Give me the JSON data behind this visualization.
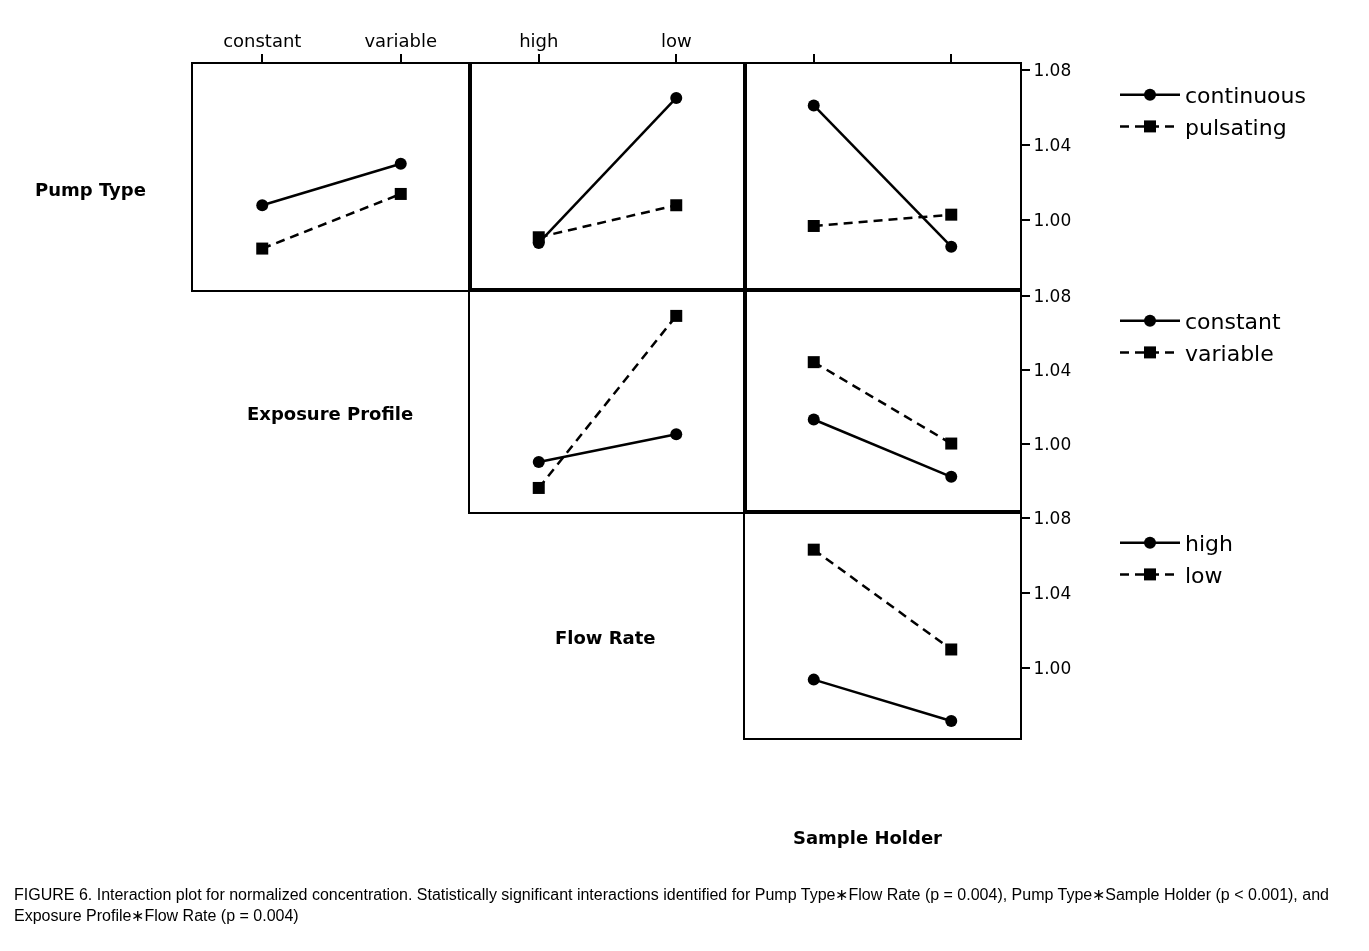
{
  "chart_data": [
    {
      "type": "line",
      "ylabel": "Pump Type",
      "categories": [
        "constant",
        "variable"
      ],
      "series": [
        {
          "color": "#000000",
          "marker": "circle",
          "line_style": "solid",
          "values": [
            1.008,
            1.03
          ]
        },
        {
          "color": "#000000",
          "marker": "square",
          "line_style": "dashed",
          "values": [
            0.985,
            1.014
          ]
        }
      ],
      "ylim": [
        0.963,
        1.083
      ],
      "tick_labels": "x",
      "annotations": [
        "FIGURE 6.   Interaction plot for normalized concentration. Statistically significant interactions identified for Pump Type∗Flow Rate (p = 0.004), Pump Type∗Sample Holder (p < 0.001), and Exposure Profile∗Flow Rate (p = 0.004)"
      ]
    },
    {
      "type": "line",
      "categories": [
        "high",
        "low"
      ],
      "series": [
        {
          "color": "#000000",
          "marker": "circle",
          "line_style": "solid",
          "values": [
            0.988,
            1.065
          ]
        },
        {
          "color": "#000000",
          "marker": "square",
          "line_style": "dashed",
          "values": [
            0.991,
            1.008
          ]
        }
      ],
      "ylim": [
        0.963,
        1.083
      ],
      "tick_labels": "x"
    },
    {
      "type": "line",
      "categories": [
        null,
        null
      ],
      "series": [
        {
          "name": "continuous",
          "color": "#000000",
          "marker": "circle",
          "line_style": "solid",
          "values": [
            1.061,
            0.986
          ]
        },
        {
          "name": "pulsating",
          "color": "#000000",
          "marker": "square",
          "line_style": "dashed",
          "values": [
            0.997,
            1.003
          ]
        }
      ],
      "ylim": [
        0.963,
        1.083
      ],
      "yticks": [
        {
          "value": 1.0,
          "label": "1.00"
        },
        {
          "value": 1.04,
          "label": "1.04"
        },
        {
          "value": 1.08,
          "label": "1.08"
        }
      ],
      "tick_labels": "y",
      "legend": "right"
    },
    {
      "type": "line",
      "ylabel": "Exposure Profile",
      "categories": [
        null,
        null
      ],
      "series": [
        {
          "color": "#000000",
          "marker": "circle",
          "line_style": "solid",
          "values": [
            0.99,
            1.005
          ]
        },
        {
          "color": "#000000",
          "marker": "square",
          "line_style": "dashed",
          "values": [
            0.976,
            1.069
          ]
        }
      ],
      "ylim": [
        0.963,
        1.083
      ],
      "tick_labels": false
    },
    {
      "type": "line",
      "categories": [
        null,
        null
      ],
      "series": [
        {
          "name": "constant",
          "color": "#000000",
          "marker": "circle",
          "line_style": "solid",
          "values": [
            1.013,
            0.982
          ]
        },
        {
          "name": "variable",
          "color": "#000000",
          "marker": "square",
          "line_style": "dashed",
          "values": [
            1.044,
            1.0
          ]
        }
      ],
      "ylim": [
        0.963,
        1.083
      ],
      "yticks": [
        {
          "value": 1.0,
          "label": "1.00"
        },
        {
          "value": 1.04,
          "label": "1.04"
        },
        {
          "value": 1.08,
          "label": "1.08"
        }
      ],
      "tick_labels": "y",
      "legend": "right"
    },
    {
      "type": "line",
      "ylabel": "Flow Rate",
      "xlabel": "Sample Holder",
      "categories": [
        null,
        null
      ],
      "series": [
        {
          "name": "high",
          "color": "#000000",
          "marker": "circle",
          "line_style": "solid",
          "values": [
            0.994,
            0.972
          ]
        },
        {
          "name": "low",
          "color": "#000000",
          "marker": "square",
          "line_style": "dashed",
          "values": [
            1.063,
            1.01
          ]
        }
      ],
      "ylim": [
        0.963,
        1.083
      ],
      "yticks": [
        {
          "value": 1.0,
          "label": "1.00"
        },
        {
          "value": 1.04,
          "label": "1.04"
        },
        {
          "value": 1.08,
          "label": "1.08"
        }
      ],
      "tick_labels": "y",
      "legend": "right"
    }
  ]
}
